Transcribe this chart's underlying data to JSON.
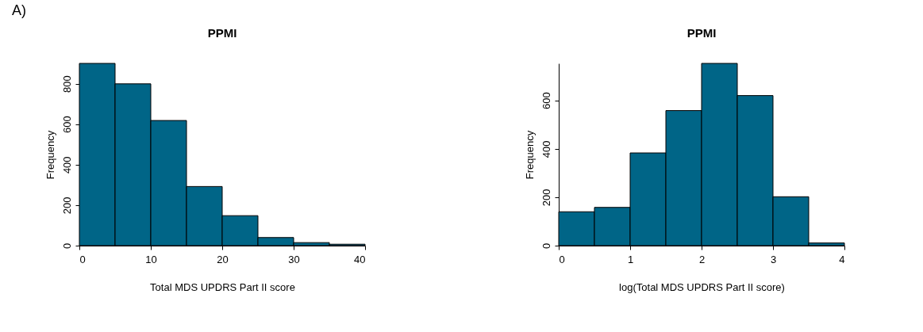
{
  "chart_data": [
    {
      "type": "histogram",
      "title": "PPMI",
      "xlabel": "Total MDS UPDRS Part II score",
      "ylabel": "Frequency",
      "annotations": [
        "A)"
      ],
      "bins": [
        0,
        5,
        10,
        15,
        20,
        25,
        30,
        35,
        40
      ],
      "values": [
        900,
        799,
        618,
        292,
        148,
        40,
        15,
        7
      ],
      "color": "#006587",
      "xlim": [
        0,
        40
      ],
      "xticks": [
        0,
        10,
        20,
        30,
        40
      ],
      "ylim": [
        0,
        900
      ],
      "yticks": [
        0,
        200,
        400,
        600,
        800
      ],
      "grid": false
    },
    {
      "type": "histogram",
      "title": "PPMI",
      "xlabel": "log(Total MDS UPDRS Part II score)",
      "ylabel": "Frequency",
      "bins": [
        0,
        0.5,
        1,
        1.5,
        2,
        2.5,
        3,
        3.5,
        4
      ],
      "values": [
        140,
        158,
        383,
        558,
        753,
        620,
        202,
        11
      ],
      "color": "#006587",
      "xlim": [
        0,
        4
      ],
      "xticks": [
        0,
        1,
        2,
        3,
        4
      ],
      "ylim": [
        0,
        753
      ],
      "yticks": [
        0,
        200,
        400,
        600
      ],
      "grid": false
    }
  ]
}
